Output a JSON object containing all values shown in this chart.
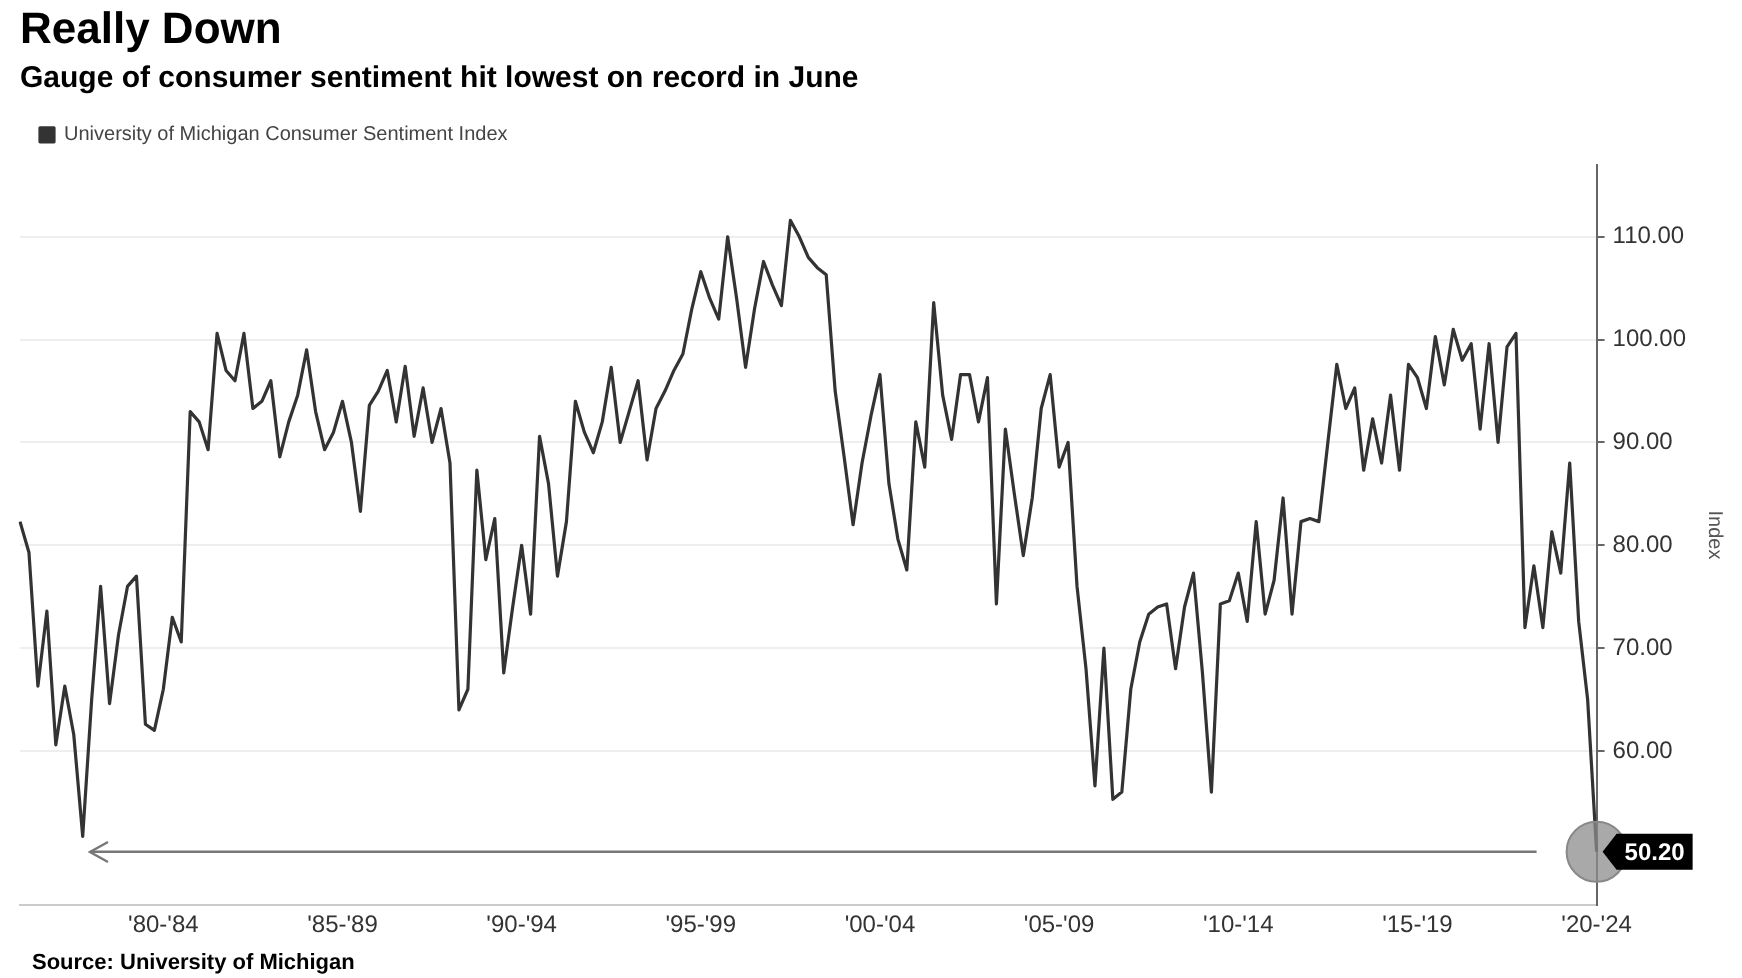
{
  "chart_data": {
    "type": "line",
    "title": "Really Down",
    "subtitle": "Gauge of consumer sentiment hit lowest on record in June",
    "ylabel": "Index",
    "categories": [
      null,
      null,
      null,
      null,
      null,
      null,
      null,
      null,
      null,
      null,
      null,
      null,
      null,
      null,
      null,
      null,
      "'80-'84",
      null,
      null,
      null,
      null,
      null,
      null,
      null,
      null,
      null,
      null,
      null,
      null,
      null,
      null,
      null,
      null,
      null,
      null,
      null,
      "'85-'89",
      null,
      null,
      null,
      null,
      null,
      null,
      null,
      null,
      null,
      null,
      null,
      null,
      null,
      null,
      null,
      null,
      null,
      null,
      null,
      "'90-'94",
      null,
      null,
      null,
      null,
      null,
      null,
      null,
      null,
      null,
      null,
      null,
      null,
      null,
      null,
      null,
      null,
      null,
      null,
      null,
      "'95-'99",
      null,
      null,
      null,
      null,
      null,
      null,
      null,
      null,
      null,
      null,
      null,
      null,
      null,
      null,
      null,
      null,
      null,
      null,
      null,
      "'00-'04",
      null,
      null,
      null,
      null,
      null,
      null,
      null,
      null,
      null,
      null,
      null,
      null,
      null,
      null,
      null,
      null,
      null,
      null,
      null,
      "'05-'09",
      null,
      null,
      null,
      null,
      null,
      null,
      null,
      null,
      null,
      null,
      null,
      null,
      null,
      null,
      null,
      null,
      null,
      null,
      null,
      "'10-'14",
      null,
      null,
      null,
      null,
      null,
      null,
      null,
      null,
      null,
      null,
      null,
      null,
      null,
      null,
      null,
      null,
      null,
      null,
      null,
      "'15-'19",
      null,
      null,
      null,
      null,
      null,
      null,
      null,
      null,
      null,
      null,
      null,
      null,
      null,
      null,
      null,
      null,
      null,
      null,
      null,
      "'20-'24"
    ],
    "series": [
      {
        "name": "University of Michigan Consumer Sentiment Index",
        "color": "#333333",
        "values": [
          82.3,
          79.3,
          66.3,
          73.6,
          60.6,
          66.3,
          61.6,
          51.7,
          65,
          76,
          64.6,
          71.3,
          76,
          77,
          62.6,
          62,
          66,
          73,
          70.6,
          93,
          92,
          89.3,
          100.6,
          97,
          96,
          100.6,
          93.3,
          94,
          96,
          88.6,
          92,
          94.6,
          99,
          93,
          89.3,
          91,
          94,
          90,
          83.3,
          93.6,
          95,
          97,
          92,
          97.4,
          90.6,
          95.3,
          90,
          93.3,
          88,
          64,
          66,
          87.3,
          78.6,
          82.6,
          67.6,
          74,
          80,
          73.3,
          90.6,
          86,
          77,
          82.3,
          94,
          91,
          89,
          92,
          97.3,
          90,
          93,
          96,
          88.3,
          93.3,
          95,
          97,
          98.6,
          103,
          106.6,
          104,
          102,
          110,
          104,
          97.3,
          103,
          107.6,
          105.3,
          103.3,
          111.6,
          110,
          108,
          107,
          106.3,
          95,
          88.6,
          82,
          88,
          92.6,
          96.6,
          86,
          80.6,
          77.6,
          92,
          87.6,
          103.6,
          94.6,
          90.3,
          96.6,
          96.6,
          92,
          96.3,
          74.3,
          91.3,
          85,
          79,
          84.6,
          93.3,
          96.6,
          87.6,
          90,
          76,
          68,
          56.6,
          70,
          55.3,
          56,
          66,
          70.6,
          73.3,
          74,
          74.3,
          68,
          74,
          77.3,
          67.6,
          56,
          74.3,
          74.6,
          77.3,
          72.6,
          82.3,
          73.3,
          76.6,
          84.6,
          73.3,
          82.3,
          82.6,
          82.3,
          90,
          97.6,
          93.3,
          95.3,
          87.3,
          92.3,
          88,
          94.6,
          87.3,
          97.6,
          96.3,
          93.3,
          100.3,
          95.6,
          101,
          98,
          99.6,
          91.3,
          99.6,
          90,
          99.3,
          100.6,
          72,
          78,
          72,
          81.3,
          77.3,
          88,
          72.6,
          65,
          50.2
        ],
        "value_labels": [
          null,
          null,
          null,
          null,
          null,
          null,
          null,
          null,
          null,
          null,
          null,
          null,
          null,
          null,
          null,
          null,
          null,
          null,
          null,
          null,
          null,
          null,
          null,
          null,
          null,
          null,
          null,
          null,
          null,
          null,
          null,
          null,
          null,
          null,
          null,
          null,
          null,
          null,
          null,
          null,
          null,
          null,
          null,
          null,
          null,
          null,
          null,
          null,
          null,
          null,
          null,
          null,
          null,
          null,
          null,
          null,
          null,
          null,
          null,
          null,
          null,
          null,
          null,
          null,
          null,
          null,
          null,
          null,
          null,
          null,
          null,
          null,
          null,
          null,
          null,
          null,
          null,
          null,
          null,
          null,
          null,
          null,
          null,
          null,
          null,
          null,
          null,
          null,
          null,
          null,
          null,
          null,
          null,
          null,
          null,
          null,
          null,
          null,
          null,
          null,
          null,
          null,
          null,
          null,
          null,
          null,
          null,
          null,
          null,
          null,
          null,
          null,
          null,
          null,
          null,
          null,
          null,
          null,
          null,
          null,
          null,
          null,
          null,
          null,
          null,
          null,
          null,
          null,
          null,
          null,
          null,
          null,
          null,
          null,
          null,
          null,
          null,
          null,
          null,
          null,
          null,
          null,
          null,
          null,
          null,
          null,
          null,
          null,
          null,
          null,
          null,
          null,
          null,
          null,
          null,
          null,
          null,
          null,
          null,
          null,
          null,
          null,
          null,
          null,
          null,
          null,
          null,
          null,
          null,
          null,
          null,
          null,
          null,
          null,
          null,
          null,
          "50.20"
        ]
      }
    ],
    "ylim": [
      45,
      117
    ],
    "yticks": [
      {
        "value": 60,
        "label": "60.00"
      },
      {
        "value": 70,
        "label": "70.00"
      },
      {
        "value": 80,
        "label": "80.00"
      },
      {
        "value": 90,
        "label": "90.00"
      },
      {
        "value": 100,
        "label": "100.00"
      },
      {
        "value": 110,
        "label": "110.00"
      }
    ],
    "grid": "y",
    "legend": "top left",
    "ref_lines": [
      {
        "axis": "y",
        "value": 50.2,
        "color": "#777777"
      }
    ],
    "annotations": [
      "Source: University of Michigan"
    ]
  }
}
